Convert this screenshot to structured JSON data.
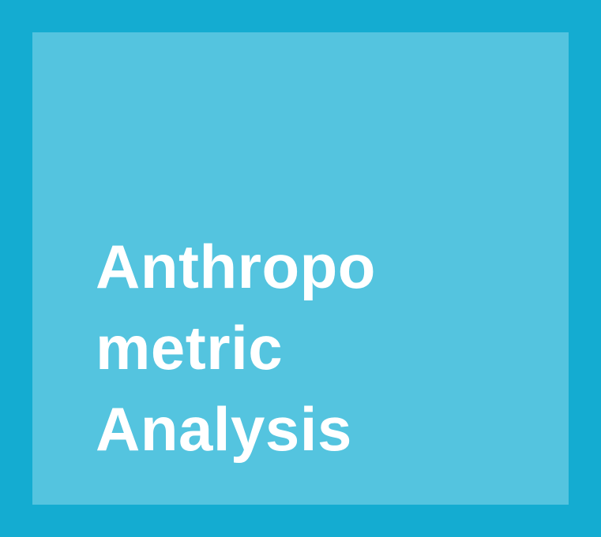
{
  "colors": {
    "border": "#14acd1",
    "panel": "#54c4df",
    "text": "#ffffff"
  },
  "title": {
    "lines": [
      "Anthropo",
      "metric",
      "Analysis"
    ]
  }
}
